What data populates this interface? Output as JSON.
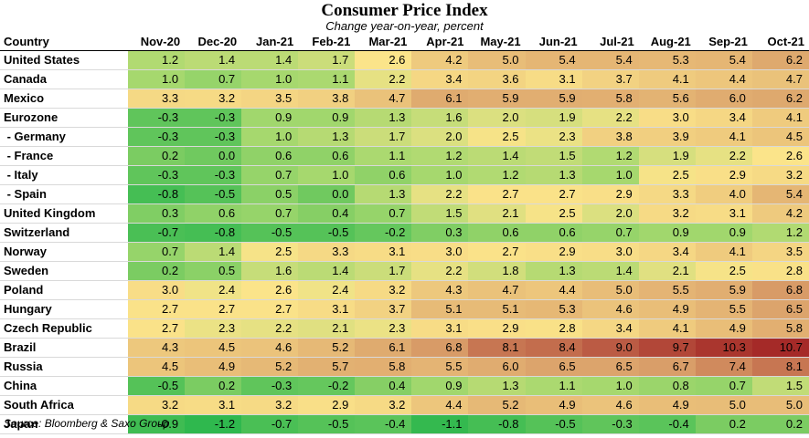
{
  "title": "Consumer Price Index",
  "subtitle": "Change year-on-year, percent",
  "source": "Source: Bloomberg & Saxo Group",
  "chart_data": {
    "type": "heatmap",
    "corner_label": "Country",
    "columns": [
      "Nov-20",
      "Dec-20",
      "Jan-21",
      "Feb-21",
      "Mar-21",
      "Apr-21",
      "May-21",
      "Jun-21",
      "Jul-21",
      "Aug-21",
      "Sep-21",
      "Oct-21"
    ],
    "rows": [
      {
        "country": "United States",
        "values": [
          "1.2",
          "1.4",
          "1.4",
          "1.7",
          "2.6",
          "4.2",
          "5.0",
          "5.4",
          "5.4",
          "5.3",
          "5.4",
          "6.2"
        ]
      },
      {
        "country": "Canada",
        "values": [
          "1.0",
          "0.7",
          "1.0",
          "1.1",
          "2.2",
          "3.4",
          "3.6",
          "3.1",
          "3.7",
          "4.1",
          "4.4",
          "4.7"
        ]
      },
      {
        "country": "Mexico",
        "values": [
          "3.3",
          "3.2",
          "3.5",
          "3.8",
          "4.7",
          "6.1",
          "5.9",
          "5.9",
          "5.8",
          "5.6",
          "6.0",
          "6.2"
        ]
      },
      {
        "country": "Eurozone",
        "values": [
          "-0.3",
          "-0.3",
          "0.9",
          "0.9",
          "1.3",
          "1.6",
          "2.0",
          "1.9",
          "2.2",
          "3.0",
          "3.4",
          "4.1"
        ]
      },
      {
        "country": " - Germany",
        "values": [
          "-0.3",
          "-0.3",
          "1.0",
          "1.3",
          "1.7",
          "2.0",
          "2.5",
          "2.3",
          "3.8",
          "3.9",
          "4.1",
          "4.5"
        ]
      },
      {
        "country": " - France",
        "values": [
          "0.2",
          "0.0",
          "0.6",
          "0.6",
          "1.1",
          "1.2",
          "1.4",
          "1.5",
          "1.2",
          "1.9",
          "2.2",
          "2.6"
        ]
      },
      {
        "country": " - Italy",
        "values": [
          "-0.3",
          "-0.3",
          "0.7",
          "1.0",
          "0.6",
          "1.0",
          "1.2",
          "1.3",
          "1.0",
          "2.5",
          "2.9",
          "3.2"
        ]
      },
      {
        "country": " - Spain",
        "values": [
          "-0.8",
          "-0.5",
          "0.5",
          "0.0",
          "1.3",
          "2.2",
          "2.7",
          "2.7",
          "2.9",
          "3.3",
          "4.0",
          "5.4"
        ]
      },
      {
        "country": "United Kingdom",
        "values": [
          "0.3",
          "0.6",
          "0.7",
          "0.4",
          "0.7",
          "1.5",
          "2.1",
          "2.5",
          "2.0",
          "3.2",
          "3.1",
          "4.2"
        ]
      },
      {
        "country": "Switzerland",
        "values": [
          "-0.7",
          "-0.8",
          "-0.5",
          "-0.5",
          "-0.2",
          "0.3",
          "0.6",
          "0.6",
          "0.7",
          "0.9",
          "0.9",
          "1.2"
        ]
      },
      {
        "country": "Norway",
        "values": [
          "0.7",
          "1.4",
          "2.5",
          "3.3",
          "3.1",
          "3.0",
          "2.7",
          "2.9",
          "3.0",
          "3.4",
          "4.1",
          "3.5"
        ]
      },
      {
        "country": "Sweden",
        "values": [
          "0.2",
          "0.5",
          "1.6",
          "1.4",
          "1.7",
          "2.2",
          "1.8",
          "1.3",
          "1.4",
          "2.1",
          "2.5",
          "2.8"
        ]
      },
      {
        "country": "Poland",
        "values": [
          "3.0",
          "2.4",
          "2.6",
          "2.4",
          "3.2",
          "4.3",
          "4.7",
          "4.4",
          "5.0",
          "5.5",
          "5.9",
          "6.8"
        ]
      },
      {
        "country": "Hungary",
        "values": [
          "2.7",
          "2.7",
          "2.7",
          "3.1",
          "3.7",
          "5.1",
          "5.1",
          "5.3",
          "4.6",
          "4.9",
          "5.5",
          "6.5"
        ]
      },
      {
        "country": "Czech Republic",
        "values": [
          "2.7",
          "2.3",
          "2.2",
          "2.1",
          "2.3",
          "3.1",
          "2.9",
          "2.8",
          "3.4",
          "4.1",
          "4.9",
          "5.8"
        ]
      },
      {
        "country": "Brazil",
        "values": [
          "4.3",
          "4.5",
          "4.6",
          "5.2",
          "6.1",
          "6.8",
          "8.1",
          "8.4",
          "9.0",
          "9.7",
          "10.3",
          "10.7"
        ]
      },
      {
        "country": "Russia",
        "values": [
          "4.5",
          "4.9",
          "5.2",
          "5.7",
          "5.8",
          "5.5",
          "6.0",
          "6.5",
          "6.5",
          "6.7",
          "7.4",
          "8.1"
        ]
      },
      {
        "country": "China",
        "values": [
          "-0.5",
          "0.2",
          "-0.3",
          "-0.2",
          "0.4",
          "0.9",
          "1.3",
          "1.1",
          "1.0",
          "0.8",
          "0.7",
          "1.5"
        ]
      },
      {
        "country": "South Africa",
        "values": [
          "3.2",
          "3.1",
          "3.2",
          "2.9",
          "3.2",
          "4.4",
          "5.2",
          "4.9",
          "4.6",
          "4.9",
          "5.0",
          "5.0"
        ]
      },
      {
        "country": "Japan",
        "values": [
          "-0.9",
          "-1.2",
          "-0.7",
          "-0.5",
          "-0.4",
          "-1.1",
          "-0.8",
          "-0.5",
          "-0.3",
          "-0.4",
          "0.2",
          "0.2"
        ]
      }
    ],
    "color_scale": {
      "low": "#2fb84e",
      "mid": "#fbe48a",
      "high": "#a52a28"
    }
  }
}
